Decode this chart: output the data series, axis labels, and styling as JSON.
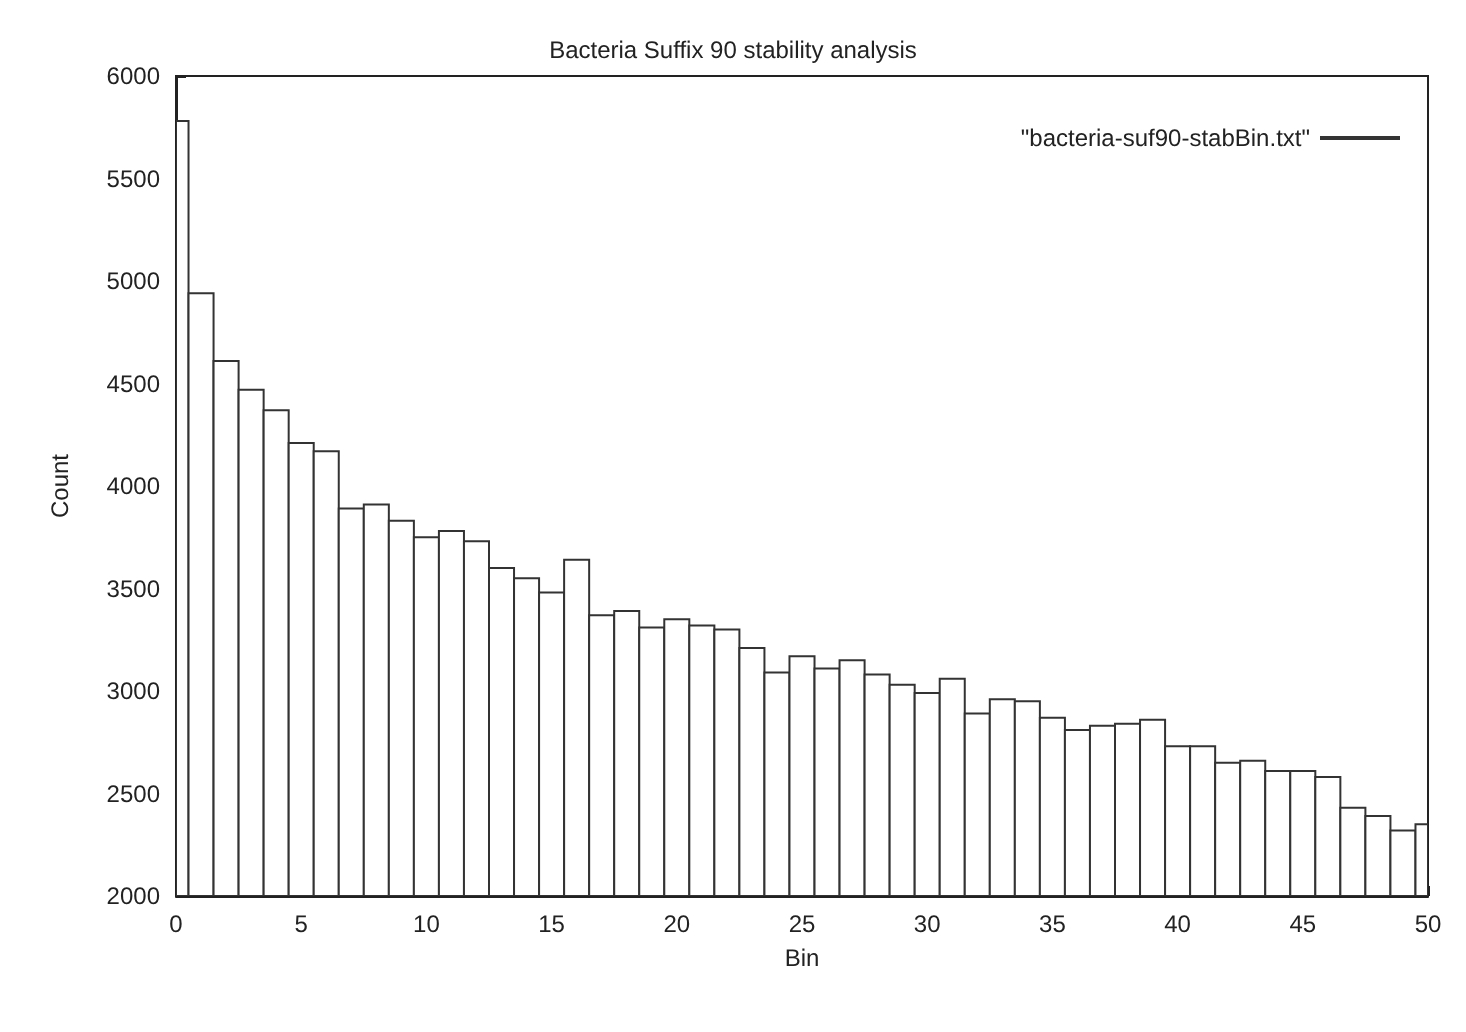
{
  "chart_data": {
    "type": "bar",
    "title": "Bacteria Suffix 90 stability analysis",
    "xlabel": "Bin",
    "ylabel": "Count",
    "x": [
      0,
      1,
      2,
      3,
      4,
      5,
      6,
      7,
      8,
      9,
      10,
      11,
      12,
      13,
      14,
      15,
      16,
      17,
      18,
      19,
      20,
      21,
      22,
      23,
      24,
      25,
      26,
      27,
      28,
      29,
      30,
      31,
      32,
      33,
      34,
      35,
      36,
      37,
      38,
      39,
      40,
      41,
      42,
      43,
      44,
      45,
      46,
      47,
      48,
      49,
      50
    ],
    "series": [
      {
        "name": "\"bacteria-suf90-stabBin.txt\"",
        "color": "#333333",
        "values": [
          5780,
          4940,
          4610,
          4470,
          4370,
          4210,
          4170,
          3890,
          3910,
          3830,
          3750,
          3780,
          3730,
          3600,
          3550,
          3480,
          3640,
          3370,
          3390,
          3310,
          3350,
          3320,
          3300,
          3210,
          3090,
          3170,
          3110,
          3150,
          3080,
          3030,
          2990,
          3060,
          2890,
          2960,
          2950,
          2870,
          2810,
          2830,
          2840,
          2860,
          2730,
          2730,
          2650,
          2660,
          2610,
          2610,
          2580,
          2430,
          2390,
          2320,
          2350
        ]
      }
    ],
    "xlim": [
      0,
      50
    ],
    "xticks": [
      0,
      5,
      10,
      15,
      20,
      25,
      30,
      35,
      40,
      45,
      50
    ],
    "ylim": [
      2000,
      6000
    ],
    "yticks": [
      2000,
      2500,
      3000,
      3500,
      4000,
      4500,
      5000,
      5500,
      6000
    ],
    "grid": false,
    "legend": "top right"
  }
}
